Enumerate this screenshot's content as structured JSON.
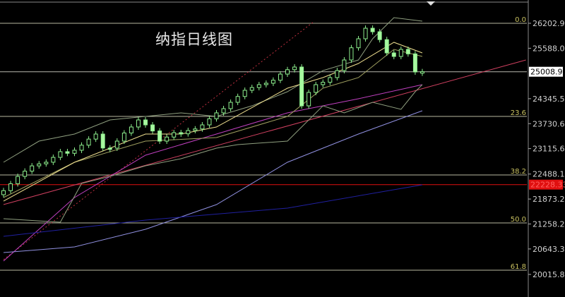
{
  "title": "纳指日线图",
  "chart_data": {
    "type": "candlestick",
    "title": "纳指日线图",
    "ylim": [
      19900,
      26500
    ],
    "y_ticks": [
      "26202.95",
      "25588.00",
      "24345.55",
      "23730.60",
      "23115.65",
      "22488.15",
      "21873.20",
      "21258.25",
      "20643.30",
      "20015.80"
    ],
    "current_price": {
      "label": "25008.98",
      "value": 25008.98,
      "color": "#ffffff"
    },
    "alert_line": {
      "label": "22228.33",
      "value": 22228.33,
      "color": "#e01010"
    },
    "fib_levels": [
      {
        "label": "0.0",
        "value": 26202.95
      },
      {
        "label": "23.6",
        "value": 23909
      },
      {
        "label": "38.2",
        "value": 22466
      },
      {
        "label": "50.0",
        "value": 21284
      },
      {
        "label": "61.8",
        "value": 20120
      }
    ],
    "candles_close": [
      22080,
      22250,
      22430,
      22560,
      22690,
      22740,
      22780,
      22900,
      23040,
      23000,
      23075,
      23200,
      23350,
      23474,
      23130,
      23127,
      23300,
      23500,
      23648,
      23822,
      23700,
      23550,
      23300,
      23400,
      23509,
      23480,
      23561,
      23600,
      23700,
      23850,
      23996,
      24100,
      24256,
      24400,
      24552,
      24620,
      24691,
      24726,
      24800,
      24951,
      25060,
      25125,
      24169,
      24500,
      24691,
      24750,
      24865,
      25038,
      25299,
      25600,
      25821,
      26081,
      25994,
      25800,
      25473,
      25386,
      25560,
      25450,
      25004,
      25010
    ],
    "lines": [
      {
        "color": "#d04060",
        "style": "solid",
        "x": [
          0,
          73.6
        ],
        "y": [
          21736,
          25299
        ]
      },
      {
        "color": "#c03040",
        "style": "dotted",
        "x": [
          0,
          43.8
        ],
        "y": [
          20380,
          26255
        ]
      },
      {
        "color": "#c040c0",
        "style": "solid",
        "x": [
          0,
          10,
          20,
          30,
          40,
          50,
          59
        ],
        "y": [
          20346,
          21910,
          22953,
          23474,
          23996,
          24343,
          24691
        ]
      },
      {
        "color": "#9090e0",
        "style": "solid",
        "x": [
          0,
          10,
          20,
          30,
          40,
          50,
          59
        ],
        "y": [
          20555,
          20694,
          21128,
          21736,
          22779,
          23474,
          24048
        ]
      },
      {
        "color": "#2020a0",
        "style": "solid",
        "x": [
          0,
          20,
          40,
          59
        ],
        "y": [
          20954,
          21354,
          21650,
          22223
        ]
      },
      {
        "color": "#90a080",
        "style": "solid",
        "x": [
          0,
          5,
          10,
          15,
          20,
          25,
          30,
          35,
          40,
          45,
          50,
          52,
          55,
          59
        ],
        "y": [
          22779,
          23300,
          23474,
          23822,
          23909,
          23996,
          23909,
          24169,
          24517,
          25038,
          25299,
          25821,
          26342,
          26255
        ]
      },
      {
        "color": "#90a080",
        "style": "solid",
        "x": [
          0,
          8,
          11,
          15,
          20,
          25,
          30,
          33,
          40,
          45,
          48,
          52,
          56,
          58,
          59
        ],
        "y": [
          21389,
          21302,
          22258,
          22431,
          22692,
          22866,
          23127,
          23214,
          23300,
          24169,
          23996,
          24256,
          24083,
          24517,
          24691
        ]
      },
      {
        "color": "#a0a060",
        "style": "solid",
        "x": [
          0,
          10,
          20,
          30,
          40,
          45,
          50,
          55,
          59
        ],
        "y": [
          21910,
          22779,
          23300,
          23387,
          23909,
          24604,
          24865,
          25560,
          25386
        ]
      },
      {
        "color": "#f0e090",
        "style": "solid",
        "x": [
          0,
          10,
          20,
          25,
          30,
          40,
          45,
          50,
          55,
          59
        ],
        "y": [
          21823,
          22779,
          23474,
          23474,
          23648,
          24604,
          24865,
          25212,
          25734,
          25473
        ]
      }
    ]
  }
}
